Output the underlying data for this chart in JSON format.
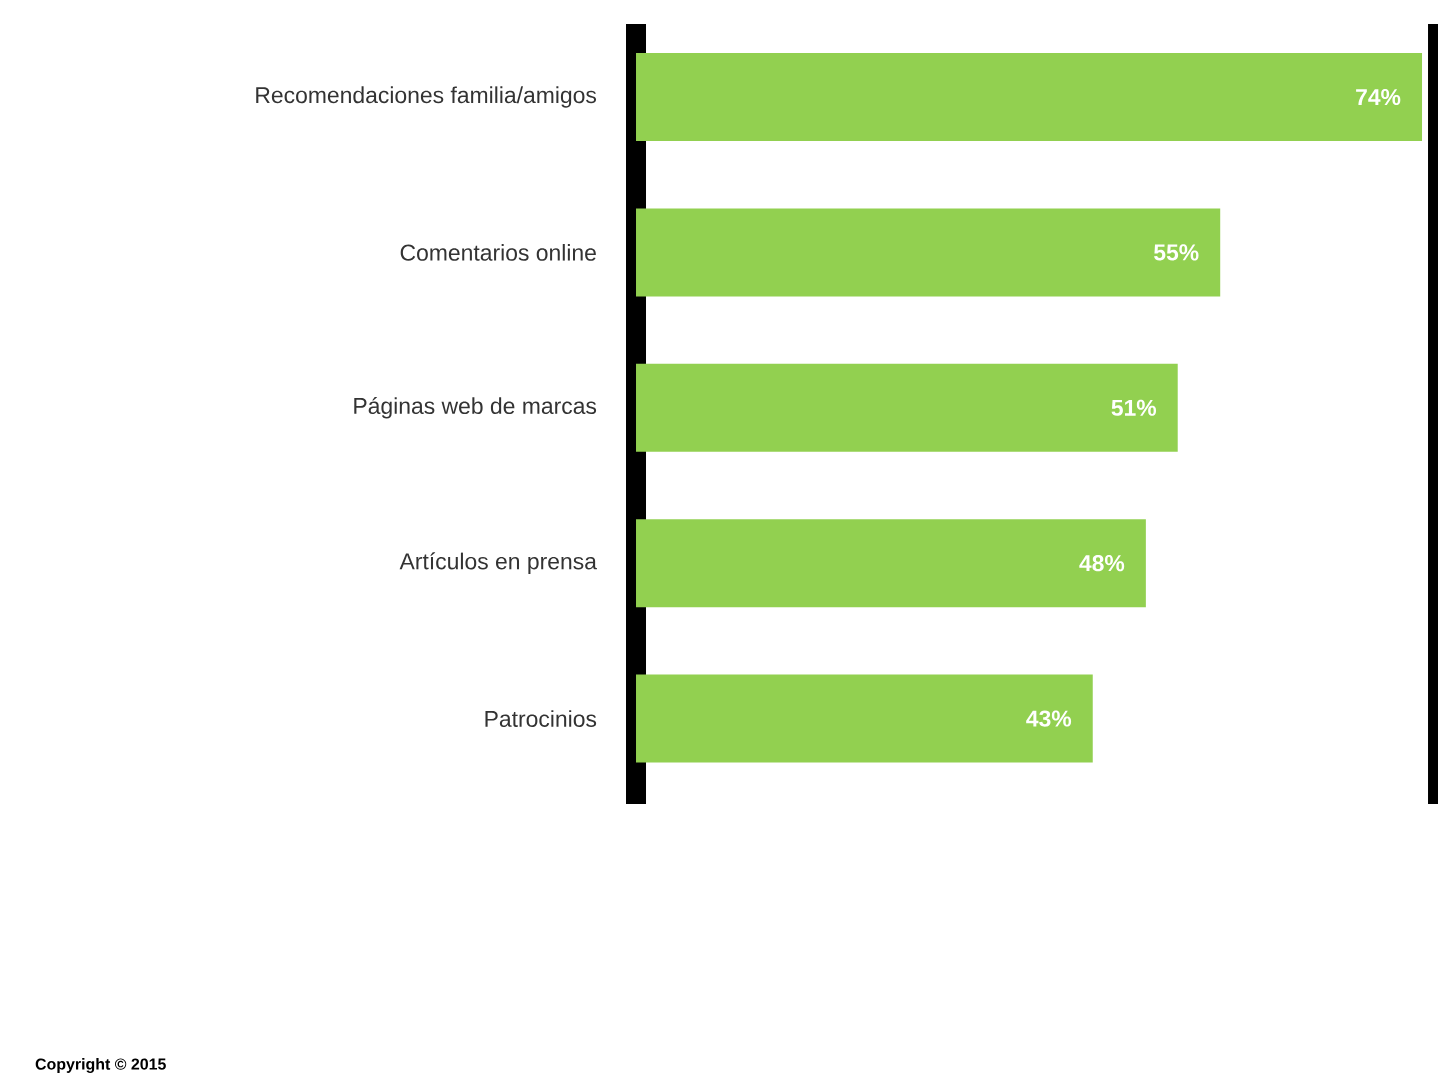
{
  "chart_data": {
    "type": "bar",
    "orientation": "horizontal",
    "categories": [
      "Recomendaciones familia/amigos",
      "Comentarios online",
      "Páginas web de marcas",
      "Artículos en prensa",
      "Patrocinios"
    ],
    "values": [
      74,
      55,
      51,
      48,
      43
    ],
    "value_labels": [
      "74%",
      "55%",
      "51%",
      "48%",
      "43%"
    ],
    "color": "#92d050",
    "annotations": [
      "Copyright © 2015"
    ]
  }
}
